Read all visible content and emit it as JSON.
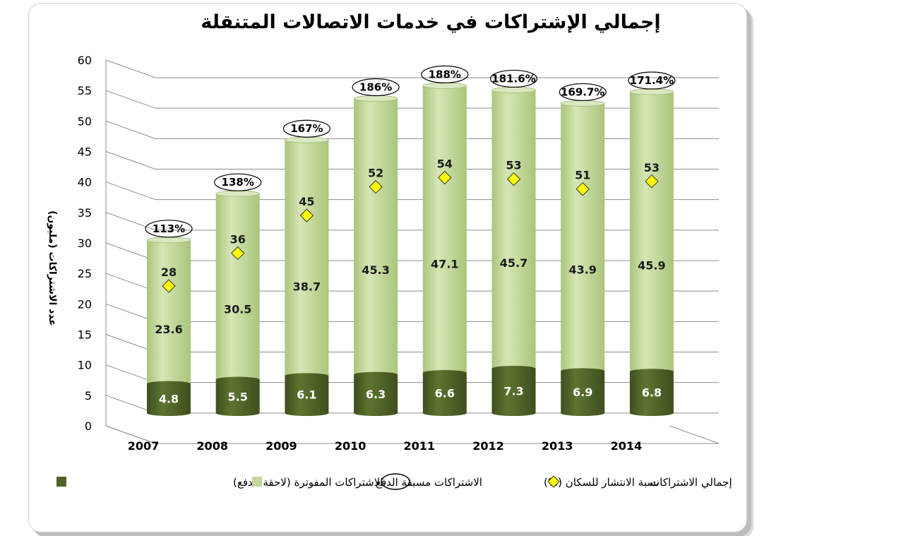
{
  "chart_data": {
    "type": "bar",
    "stacked": true,
    "title": "إجمالي الإشتراكات في خدمات الاتصالات المتنقلة",
    "ylabel": "عدد الاشتراكات (مليون)",
    "xlabel": "",
    "categories": [
      "2007",
      "2008",
      "2009",
      "2010",
      "2011",
      "2012",
      "2013",
      "2014"
    ],
    "ylim": [
      0,
      60
    ],
    "yticks": [
      0,
      5,
      10,
      15,
      20,
      25,
      30,
      35,
      40,
      45,
      50,
      55,
      60
    ],
    "grid": true,
    "series": [
      {
        "name": "الاشتراكات المفوترة (لاحقة الدفع)",
        "values": [
          4.8,
          5.5,
          6.1,
          6.3,
          6.6,
          7.3,
          6.9,
          6.8
        ],
        "color": "#4f6228"
      },
      {
        "name": "الاشتراكات مسبقة الدفع",
        "values": [
          23.6,
          30.5,
          38.7,
          45.3,
          47.1,
          45.7,
          43.9,
          45.9
        ],
        "color": "#c3d69b"
      }
    ],
    "total_series": {
      "name": "إجمالي الاشتراكات",
      "values": [
        28,
        36,
        45,
        52,
        54,
        53,
        51,
        53
      ],
      "marker_color": "#ffff00"
    },
    "penetration_series": {
      "name": "نسبة الانتشار للسكان (%)",
      "values": [
        "113%",
        "138%",
        "167%",
        "186%",
        "188%",
        "181.6%",
        "169.7%",
        "171.4%"
      ]
    },
    "legend_position": "bottom"
  }
}
